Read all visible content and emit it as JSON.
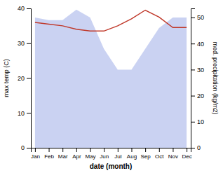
{
  "chart_data": {
    "type": "line",
    "xlabel": "date (month)",
    "ylabel": "max temp (C)",
    "y2label": "med. precipitation (kg/m2)",
    "categories": [
      "Jan",
      "Feb",
      "Mar",
      "Apr",
      "May",
      "Jun",
      "Jul",
      "Aug",
      "Sep",
      "Oct",
      "Nov",
      "Dec"
    ],
    "series": [
      {
        "type": "area",
        "axis": "y2",
        "color": "#b3bfed",
        "values": [
          50,
          49,
          49,
          53,
          50,
          38,
          30,
          30,
          38,
          46,
          50,
          50
        ]
      },
      {
        "type": "line",
        "color": "#c0392b",
        "values": [
          36,
          35.5,
          35,
          34,
          33.5,
          33.5,
          35,
          37,
          39.5,
          37.5,
          34.5,
          34.5
        ]
      }
    ],
    "ylim": [
      0,
      40
    ],
    "yticks": [
      0,
      10,
      20,
      30,
      40
    ],
    "y2lim": [
      0,
      53.5
    ],
    "y2ticks": [
      0,
      10,
      20,
      30,
      40,
      50
    ],
    "grid": false
  }
}
